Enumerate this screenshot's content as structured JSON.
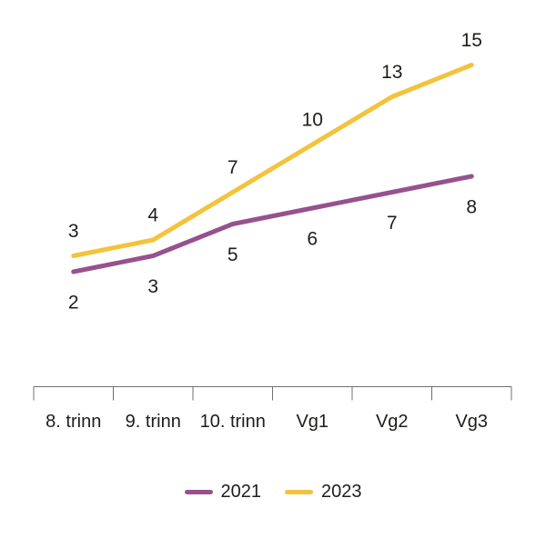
{
  "chart_data": {
    "type": "line",
    "categories": [
      "8. trinn",
      "9. trinn",
      "10. trinn",
      "Vg1",
      "Vg2",
      "Vg3"
    ],
    "series": [
      {
        "name": "2021",
        "color": "#96518F",
        "values": [
          2,
          3,
          5,
          6,
          7,
          8
        ],
        "label_position": "below"
      },
      {
        "name": "2023",
        "color": "#F3C33C",
        "values": [
          3,
          4,
          7,
          10,
          13,
          15
        ],
        "label_position": "above"
      }
    ],
    "data_labels_shown": true,
    "grid": false,
    "y_axis_visible": false,
    "implied_y_range": [
      0,
      16
    ],
    "legend_position": "bottom",
    "axis_color": "#6F6F6F",
    "text_color": "#1D1D1B"
  }
}
